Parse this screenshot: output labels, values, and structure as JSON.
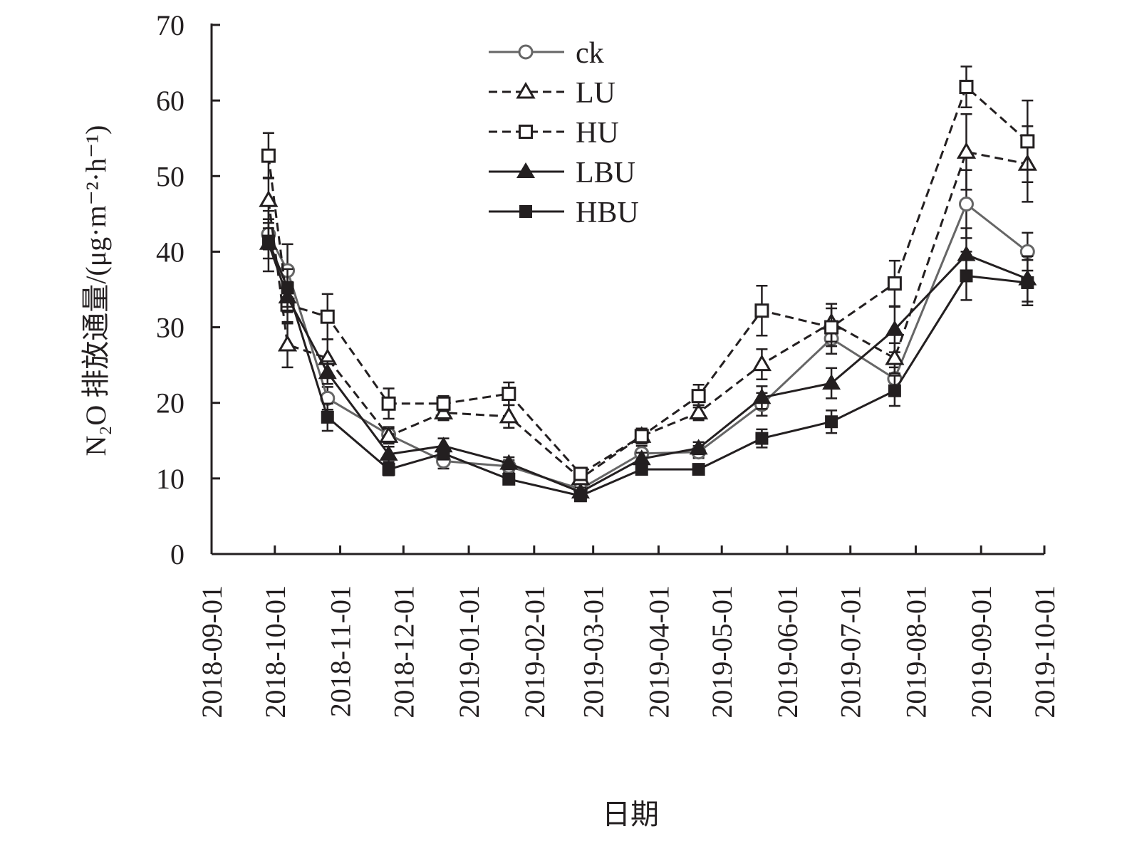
{
  "chart_data": {
    "type": "line",
    "title": "",
    "xlabel": "日期",
    "ylabel": "N₂O 排放通量/(μg·m⁻²·h⁻¹)",
    "ylim": [
      0,
      70
    ],
    "yticks": [
      "0",
      "10",
      "20",
      "30",
      "40",
      "50",
      "60",
      "70"
    ],
    "xlim": [
      "2018-09-01",
      "2019-10-01"
    ],
    "xticks": [
      "2018-09-01",
      "2018-10-01",
      "2018-11-01",
      "2018-12-01",
      "2019-01-01",
      "2019-02-01",
      "2019-03-01",
      "2019-04-01",
      "2019-05-01",
      "2019-06-01",
      "2019-07-01",
      "2019-08-01",
      "2019-09-01",
      "2019-10-01"
    ],
    "grid": false,
    "legend_position": "top-center",
    "x": [
      "2018-09-28",
      "2018-10-07",
      "2018-10-26",
      "2018-11-24",
      "2018-12-20",
      "2019-01-20",
      "2019-02-23",
      "2019-03-24",
      "2019-04-20",
      "2019-05-20",
      "2019-06-22",
      "2019-07-22",
      "2019-08-25",
      "2019-09-23"
    ],
    "series": [
      {
        "name": "ck",
        "marker": "circle-open",
        "line": "solid",
        "color": "#666666",
        "values": [
          42.3,
          37.5,
          20.6,
          15.8,
          12.3,
          11.6,
          8.6,
          13.3,
          13.5,
          19.8,
          28.5,
          23.2,
          46.3,
          40.0
        ],
        "errors": [
          2.0,
          3.5,
          1.5,
          1.0,
          1.0,
          0.8,
          0.6,
          1.0,
          0.8,
          1.5,
          2.0,
          1.5,
          4.5,
          2.5
        ]
      },
      {
        "name": "LU",
        "marker": "triangle-open",
        "line": "dashed",
        "color": "#231f20",
        "values": [
          46.8,
          27.7,
          25.9,
          15.6,
          18.7,
          18.2,
          10.0,
          15.6,
          18.7,
          25.1,
          30.6,
          25.9,
          53.2,
          51.6
        ],
        "errors": [
          3.0,
          3.0,
          2.5,
          1.0,
          1.0,
          1.5,
          0.6,
          1.0,
          1.0,
          2.0,
          2.5,
          2.0,
          5.0,
          5.0
        ]
      },
      {
        "name": "HU",
        "marker": "square-open",
        "line": "dashed",
        "color": "#231f20",
        "values": [
          52.7,
          33.0,
          31.4,
          19.9,
          19.9,
          21.2,
          10.6,
          15.6,
          20.9,
          32.2,
          30.0,
          35.8,
          61.8,
          54.6
        ],
        "errors": [
          3.0,
          2.5,
          3.0,
          2.0,
          1.0,
          1.5,
          0.6,
          1.0,
          1.5,
          3.3,
          2.5,
          3.0,
          2.7,
          5.4
        ]
      },
      {
        "name": "LBU",
        "marker": "triangle-filled",
        "line": "solid",
        "color": "#231f20",
        "values": [
          41.1,
          34.0,
          24.0,
          13.2,
          14.3,
          12.0,
          8.2,
          12.6,
          14.0,
          20.7,
          22.6,
          29.7,
          39.6,
          36.4
        ],
        "errors": [
          2.0,
          2.0,
          1.5,
          1.0,
          1.0,
          0.8,
          0.6,
          0.8,
          0.8,
          1.5,
          2.0,
          3.0,
          3.5,
          3.0
        ]
      },
      {
        "name": "HBU",
        "marker": "square-filled",
        "line": "solid",
        "color": "#231f20",
        "values": [
          41.4,
          35.2,
          18.1,
          11.2,
          13.3,
          9.9,
          7.7,
          11.2,
          11.2,
          15.3,
          17.5,
          21.6,
          36.8,
          35.9
        ],
        "errors": [
          4.0,
          2.5,
          1.8,
          0.8,
          0.8,
          0.6,
          0.5,
          0.6,
          0.6,
          1.2,
          1.5,
          2.0,
          3.2,
          3.0
        ]
      }
    ]
  }
}
